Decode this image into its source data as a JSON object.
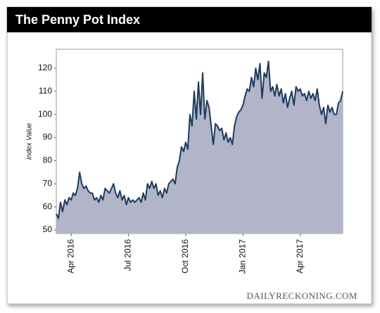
{
  "chart_data": {
    "type": "area",
    "title": "The Penny Pot Index",
    "ylabel": "Index Value",
    "source": "DAILYRECKONING.COM",
    "values": [
      57,
      55,
      62,
      58,
      63,
      61,
      64,
      63,
      66,
      65,
      68,
      75,
      70,
      68,
      69,
      67,
      66,
      66,
      63,
      64,
      62,
      65,
      63,
      68,
      67,
      66,
      68,
      70,
      66,
      64,
      67,
      63,
      65,
      61,
      64,
      62,
      63,
      62,
      63,
      64,
      62,
      66,
      63,
      70,
      68,
      71,
      68,
      70,
      65,
      67,
      64,
      68,
      66,
      70,
      71,
      72,
      70,
      77,
      80,
      86,
      84,
      88,
      85,
      100,
      95,
      110,
      98,
      114,
      100,
      118,
      98,
      106,
      103,
      95,
      87,
      96,
      95,
      93,
      94,
      89,
      92,
      88,
      90,
      87,
      95,
      99,
      101,
      102,
      104,
      108,
      111,
      110,
      116,
      112,
      120,
      115,
      122,
      107,
      118,
      116,
      123,
      110,
      112,
      108,
      113,
      108,
      111,
      105,
      109,
      103,
      107,
      110,
      104,
      112,
      110,
      111,
      108,
      109,
      106,
      110,
      107,
      109,
      106,
      111,
      104,
      100,
      103,
      96,
      104,
      101,
      103,
      100,
      100,
      105,
      106,
      110
    ],
    "color": "#b2b5c8",
    "line_color": "#1d3b5e",
    "xlim": [
      0,
      135
    ],
    "xticks": [
      {
        "value": 7,
        "label": "Apr 2016"
      },
      {
        "value": 34,
        "label": "Jul 2016"
      },
      {
        "value": 61,
        "label": "Oct 2016"
      },
      {
        "value": 88,
        "label": "Jan 2017"
      },
      {
        "value": 115,
        "label": "Apr 2017"
      }
    ],
    "ylim": [
      48.5,
      128.2
    ],
    "yticks": [
      50,
      60,
      70,
      80,
      90,
      100,
      110,
      120
    ]
  }
}
